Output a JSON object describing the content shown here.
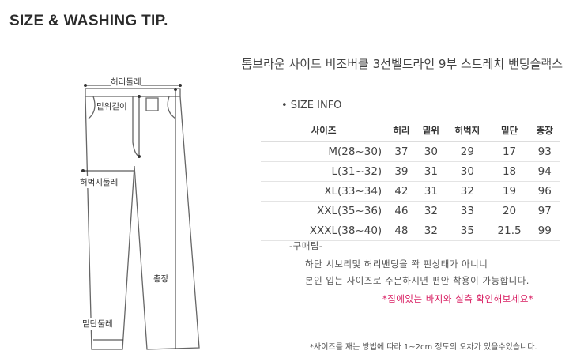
{
  "title": "SIZE & WASHING TIP.",
  "product_name": "톰브라운 사이드 비조버클 3선벨트라인 9부 스트레치 밴딩슬랙스",
  "size_info_heading": "• SIZE INFO",
  "diagram_labels": {
    "waist": "허리둘레",
    "rise": "밑위길이",
    "thigh": "허벅지둘레",
    "length": "총장",
    "hem": "밑단둘레"
  },
  "table": {
    "headers": [
      "사이즈",
      "허리",
      "밑위",
      "허벅지",
      "밑단",
      "총장"
    ],
    "rows": [
      [
        "M(28~30)",
        "37",
        "30",
        "29",
        "17",
        "93"
      ],
      [
        "L(31~32)",
        "39",
        "31",
        "30",
        "18",
        "94"
      ],
      [
        "XL(33~34)",
        "42",
        "31",
        "32",
        "19",
        "96"
      ],
      [
        "XXL(35~36)",
        "46",
        "32",
        "33",
        "20",
        "97"
      ],
      [
        "XXXL(38~40)",
        "48",
        "32",
        "35",
        "21.5",
        "99"
      ]
    ]
  },
  "tip": {
    "heading": "-구매팁-",
    "line1": "하단 시보리및 허리밴딩을 쫙 핀상태가 아니니",
    "line2": "본인 입는 사이즈로 주문하시면 편안 착용이 가능합니다.",
    "highlight": "*집에있는 바지와 실측 확인해보세요*"
  },
  "footnote": "*사이즈를 재는 방법에 따라 1~2cm 정도의 오차가 있을수있습니다.",
  "colors": {
    "highlight": "#d81b60",
    "outline": "#555555"
  }
}
